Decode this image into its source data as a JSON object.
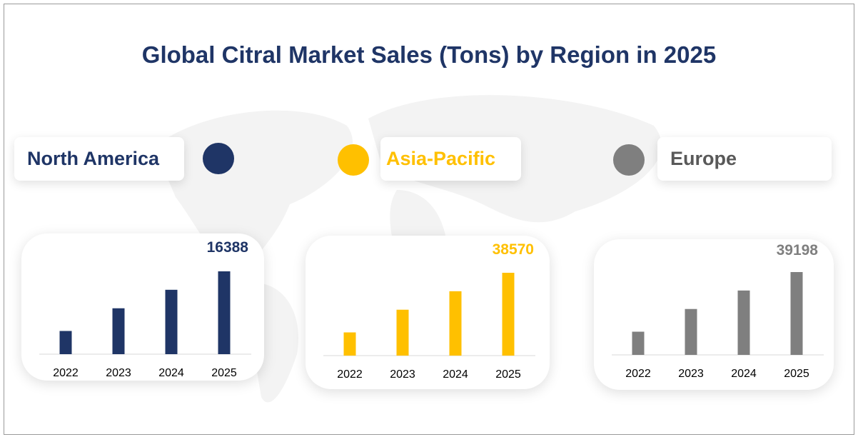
{
  "title": "Global Citral Market Sales (Tons) by Region in 2025",
  "chart_data": [
    {
      "type": "bar",
      "region": "North America",
      "color": "#1f3566",
      "categories": [
        "2022",
        "2023",
        "2024",
        "2025"
      ],
      "values": [
        4590,
        9080,
        12740,
        16388
      ],
      "value_label": "16388"
    },
    {
      "type": "bar",
      "region": "Asia-Pacific",
      "color": "#ffc000",
      "categories": [
        "2022",
        "2023",
        "2024",
        "2025"
      ],
      "values": [
        10800,
        21370,
        29970,
        38570
      ],
      "value_label": "38570"
    },
    {
      "type": "bar",
      "region": "Europe",
      "color": "#7f7f7f",
      "categories": [
        "2022",
        "2023",
        "2024",
        "2025"
      ],
      "values": [
        10980,
        21720,
        30460,
        39198
      ],
      "value_label": "39198"
    }
  ]
}
